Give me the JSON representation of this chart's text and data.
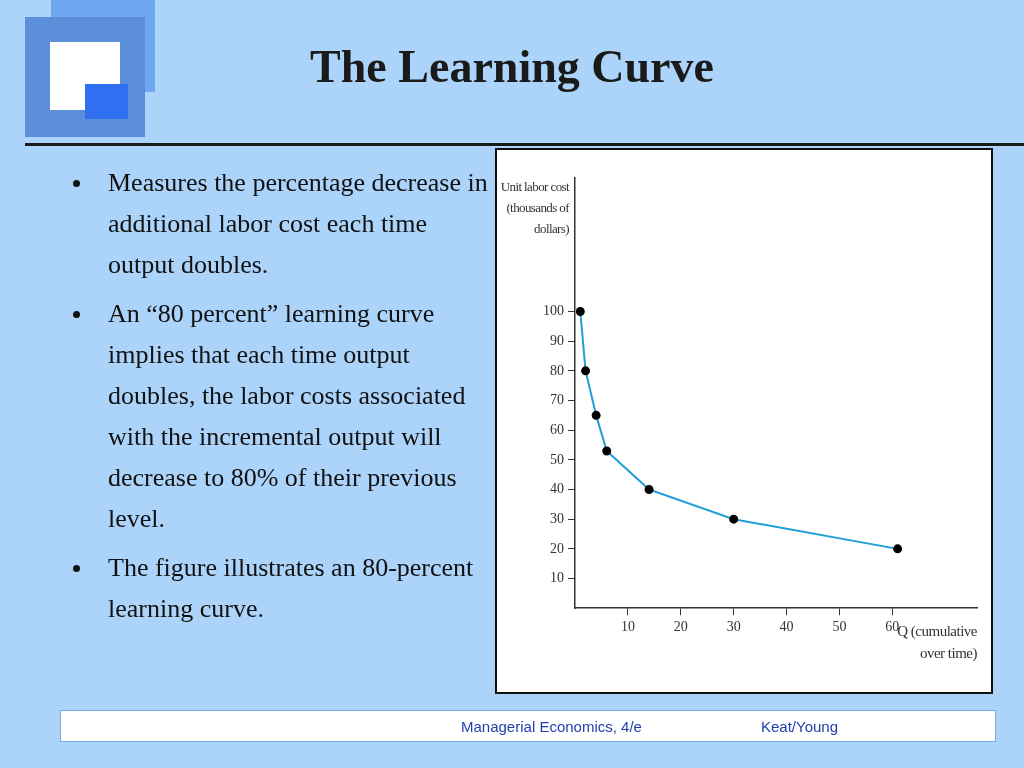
{
  "chart_data": {
    "type": "line",
    "title": "The Learning Curve",
    "xlabel": "Q (cumulative over time)",
    "ylabel": "Unit labor cost (thousands of dollars)",
    "x": [
      1,
      2,
      4,
      6,
      14,
      30,
      61
    ],
    "series": [
      {
        "color": "#1e9fd8",
        "values": [
          100,
          80,
          65,
          53,
          40,
          30,
          20
        ]
      }
    ],
    "xlim": [
      0,
      76
    ],
    "xticks": [
      10,
      20,
      30,
      40,
      50,
      60
    ],
    "ylim": [
      0,
      145
    ],
    "yticks": [
      10,
      20,
      30,
      40,
      50,
      60,
      70,
      80,
      90,
      100
    ],
    "marker": "circle",
    "line_style": "solid",
    "grid": false,
    "legend": false,
    "annotations": [
      "Measures the  percentage decrease in additional labor cost each time output doubles.",
      "An “80 percent” learning curve implies that each time output doubles, the labor costs associated with the incremental output will decrease to 80% of their previous level.",
      "The figure illustrates an 80-percent learning curve.",
      "Managerial Economics, 4/e",
      "Keat/Young"
    ]
  }
}
